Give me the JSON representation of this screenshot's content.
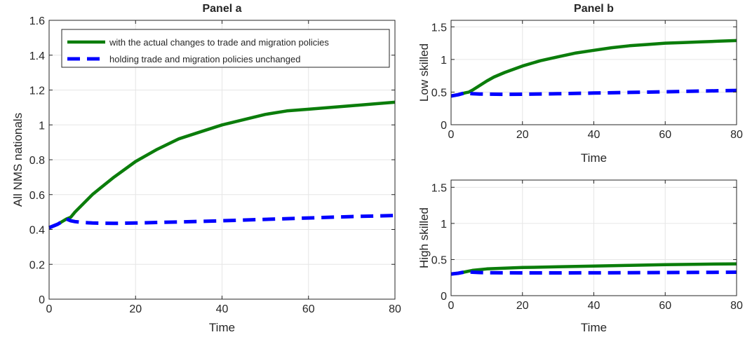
{
  "colors": {
    "actual": "#0b7d0b",
    "unchanged": "#0000ff",
    "grid": "#e6e6e6",
    "axis": "#262626"
  },
  "chart_data": [
    {
      "type": "line",
      "id": "panel_a",
      "title": "Panel a",
      "xlabel": "Time",
      "ylabel": "All NMS nationals",
      "xlim": [
        0,
        80
      ],
      "ylim": [
        0,
        1.6
      ],
      "xticks": [
        0,
        20,
        40,
        60,
        80
      ],
      "xtick_labels": [
        "0",
        "20",
        "40",
        "60",
        "80"
      ],
      "yticks": [
        0,
        0.2,
        0.4,
        0.6,
        0.8,
        1,
        1.2,
        1.4,
        1.6
      ],
      "ytick_labels": [
        "0",
        "0.2",
        "0.4",
        "0.6",
        "0.8",
        "1",
        "1.2",
        "1.4",
        "1.6"
      ],
      "grid": true,
      "legend": "top-left",
      "series": [
        {
          "name": "with the actual changes to trade and migration policies",
          "style": "solid",
          "color_key": "actual",
          "x": [
            0,
            2,
            4,
            5,
            6,
            8,
            10,
            12,
            15,
            20,
            25,
            30,
            35,
            40,
            45,
            50,
            55,
            60,
            65,
            70,
            75,
            80
          ],
          "y": [
            0.41,
            0.43,
            0.46,
            0.47,
            0.5,
            0.55,
            0.6,
            0.64,
            0.7,
            0.79,
            0.86,
            0.92,
            0.96,
            1.0,
            1.03,
            1.06,
            1.08,
            1.09,
            1.1,
            1.11,
            1.12,
            1.13
          ]
        },
        {
          "name": "holding trade and migration policies unchanged",
          "style": "dashed",
          "color_key": "unchanged",
          "x": [
            0,
            2,
            4,
            5,
            6,
            8,
            10,
            15,
            20,
            30,
            40,
            50,
            60,
            70,
            80
          ],
          "y": [
            0.41,
            0.43,
            0.46,
            0.45,
            0.445,
            0.44,
            0.437,
            0.435,
            0.437,
            0.443,
            0.45,
            0.458,
            0.466,
            0.474,
            0.48
          ]
        }
      ]
    },
    {
      "type": "line",
      "id": "panel_b_low",
      "title": "Panel b",
      "xlabel": "Time",
      "ylabel": "Low skilled",
      "xlim": [
        0,
        80
      ],
      "ylim": [
        0,
        1.6
      ],
      "xticks": [
        0,
        20,
        40,
        60,
        80
      ],
      "xtick_labels": [
        "0",
        "20",
        "40",
        "60",
        "80"
      ],
      "yticks": [
        0,
        0.5,
        1,
        1.5
      ],
      "ytick_labels": [
        "0",
        "0.5",
        "1",
        "1.5"
      ],
      "grid": true,
      "series": [
        {
          "style": "solid",
          "color_key": "actual",
          "x": [
            0,
            2,
            4,
            5,
            6,
            8,
            10,
            12,
            15,
            20,
            25,
            30,
            35,
            40,
            45,
            50,
            55,
            60,
            65,
            70,
            75,
            80
          ],
          "y": [
            0.44,
            0.46,
            0.49,
            0.5,
            0.53,
            0.6,
            0.67,
            0.73,
            0.8,
            0.9,
            0.98,
            1.04,
            1.1,
            1.14,
            1.18,
            1.21,
            1.23,
            1.25,
            1.26,
            1.27,
            1.28,
            1.29
          ]
        },
        {
          "style": "dashed",
          "color_key": "unchanged",
          "x": [
            0,
            2,
            4,
            5,
            6,
            8,
            10,
            15,
            20,
            30,
            40,
            50,
            60,
            70,
            80
          ],
          "y": [
            0.44,
            0.46,
            0.49,
            0.48,
            0.475,
            0.47,
            0.468,
            0.466,
            0.467,
            0.475,
            0.485,
            0.495,
            0.505,
            0.515,
            0.525
          ]
        }
      ]
    },
    {
      "type": "line",
      "id": "panel_b_high",
      "title": "",
      "xlabel": "Time",
      "ylabel": "High skilled",
      "xlim": [
        0,
        80
      ],
      "ylim": [
        0,
        1.6
      ],
      "xticks": [
        0,
        20,
        40,
        60,
        80
      ],
      "xtick_labels": [
        "0",
        "20",
        "40",
        "60",
        "80"
      ],
      "yticks": [
        0,
        0.5,
        1,
        1.5
      ],
      "ytick_labels": [
        "0",
        "0.5",
        "1",
        "1.5"
      ],
      "grid": true,
      "series": [
        {
          "style": "solid",
          "color_key": "actual",
          "x": [
            0,
            2,
            4,
            5,
            6,
            8,
            10,
            15,
            20,
            30,
            40,
            50,
            60,
            70,
            80
          ],
          "y": [
            0.3,
            0.31,
            0.33,
            0.34,
            0.35,
            0.36,
            0.37,
            0.38,
            0.39,
            0.4,
            0.41,
            0.42,
            0.43,
            0.435,
            0.44
          ]
        },
        {
          "style": "dashed",
          "color_key": "unchanged",
          "x": [
            0,
            2,
            4,
            5,
            6,
            8,
            10,
            15,
            20,
            30,
            40,
            50,
            60,
            70,
            80
          ],
          "y": [
            0.3,
            0.31,
            0.33,
            0.33,
            0.325,
            0.32,
            0.318,
            0.316,
            0.315,
            0.315,
            0.316,
            0.318,
            0.32,
            0.322,
            0.325
          ]
        }
      ]
    }
  ]
}
